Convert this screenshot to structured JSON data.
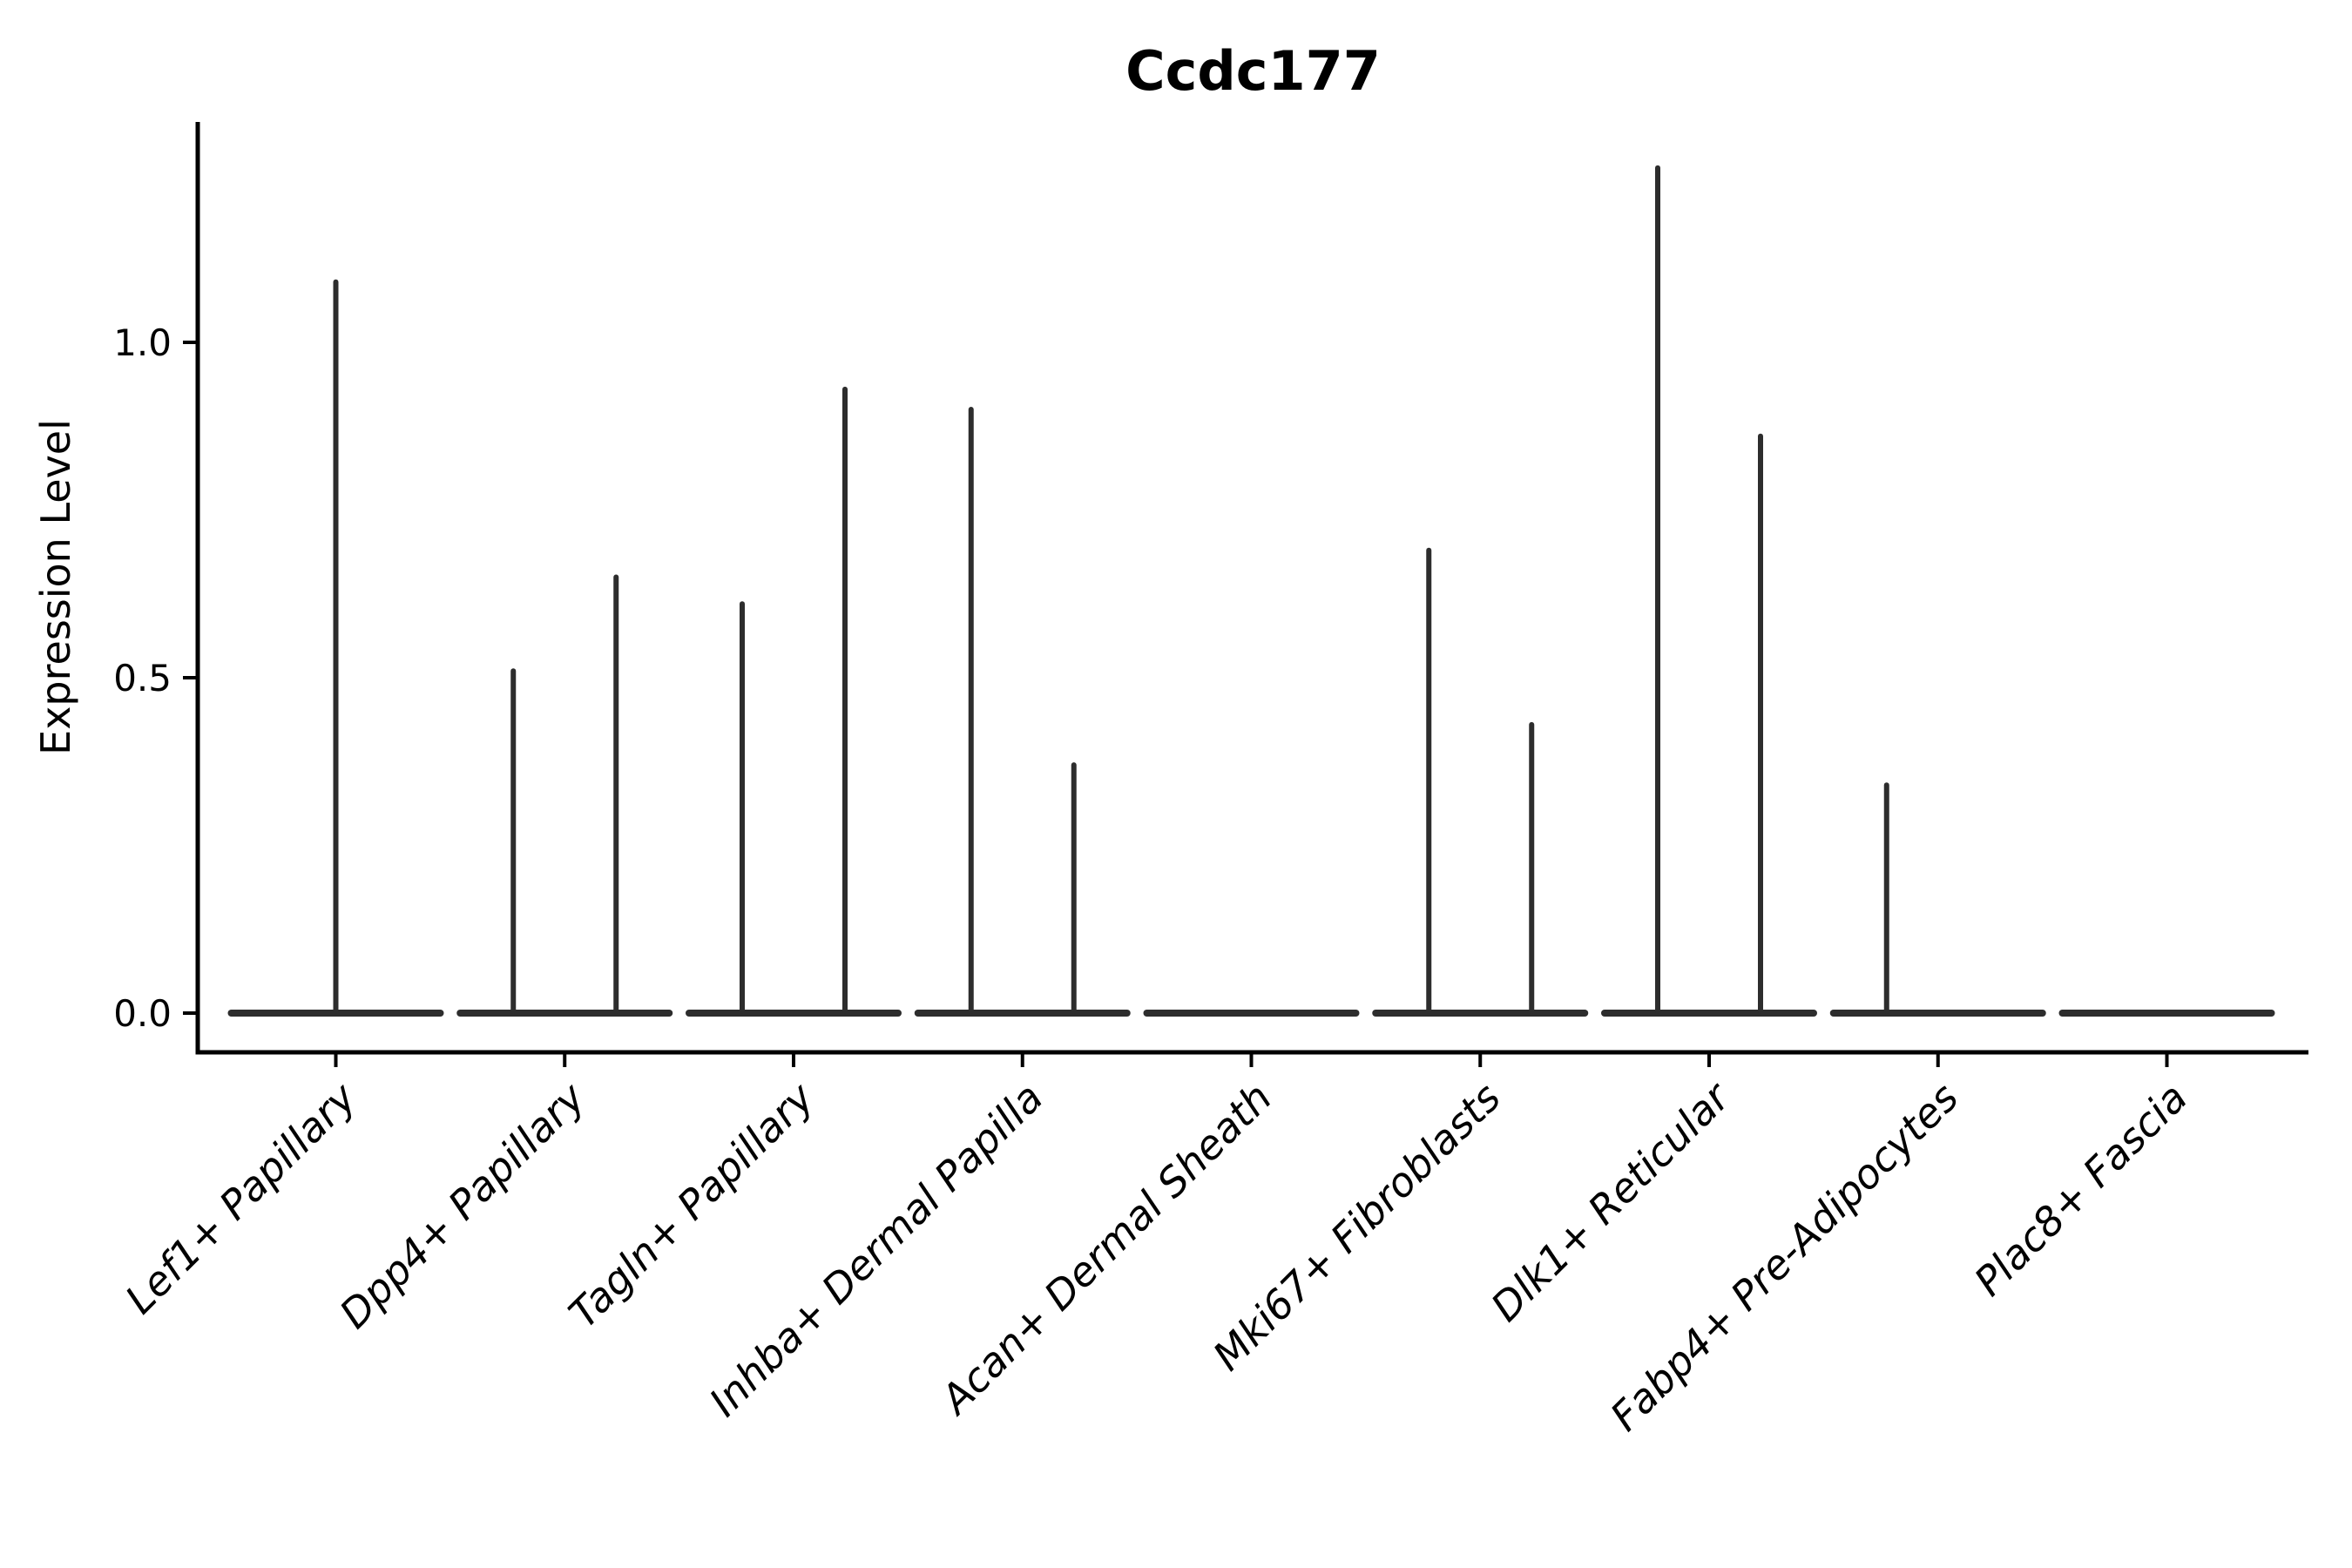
{
  "chart_data": {
    "type": "violin",
    "title": "Ccdc177",
    "ylabel": "Expression Level",
    "xlabel": "",
    "yticks": [
      "0.0",
      "0.5",
      "1.0"
    ],
    "ytick_values": [
      0.0,
      0.5,
      1.0
    ],
    "ylim": [
      -0.058,
      1.329
    ],
    "grid": false,
    "legend": "none",
    "categories": [
      "Lef1+ Papillary",
      "Dpp4+ Papillary",
      "Tagln+ Papillary",
      "Inhba+ Dermal Papilla",
      "Acan+ Dermal Sheath",
      "Mki67+ Fibroblasts",
      "Dlk1+ Reticular",
      "Fabp4+ Pre-Adipocytes",
      "Plac8+ Fascia"
    ],
    "violins": [
      {
        "category": "Lef1+ Papillary",
        "base_value": 0,
        "spikes": [
          {
            "pos": "center",
            "max": 1.09
          }
        ]
      },
      {
        "category": "Dpp4+ Papillary",
        "base_value": 0,
        "spikes": [
          {
            "pos": "left",
            "max": 0.51
          },
          {
            "pos": "right",
            "max": 0.65
          }
        ]
      },
      {
        "category": "Tagln+ Papillary",
        "base_value": 0,
        "spikes": [
          {
            "pos": "left",
            "max": 0.61
          },
          {
            "pos": "right",
            "max": 0.93
          }
        ]
      },
      {
        "category": "Inhba+ Dermal Papilla",
        "base_value": 0,
        "spikes": [
          {
            "pos": "left",
            "max": 0.9
          },
          {
            "pos": "right",
            "max": 0.37
          }
        ]
      },
      {
        "category": "Acan+ Dermal Sheath",
        "base_value": 0,
        "spikes": []
      },
      {
        "category": "Mki67+ Fibroblasts",
        "base_value": 0,
        "spikes": [
          {
            "pos": "left",
            "max": 0.69
          },
          {
            "pos": "right",
            "max": 0.43
          }
        ]
      },
      {
        "category": "Dlk1+ Reticular",
        "base_value": 0,
        "spikes": [
          {
            "pos": "left",
            "max": 1.26
          },
          {
            "pos": "right",
            "max": 0.86
          }
        ]
      },
      {
        "category": "Fabp4+ Pre-Adipocytes",
        "base_value": 0,
        "spikes": [
          {
            "pos": "left",
            "max": 0.34
          }
        ]
      },
      {
        "category": "Plac8+ Fascia",
        "base_value": 0,
        "spikes": []
      }
    ],
    "colors": {
      "violin": "#2d2d2d",
      "axis": "#000000",
      "text": "#000000",
      "background": "#ffffff"
    }
  }
}
